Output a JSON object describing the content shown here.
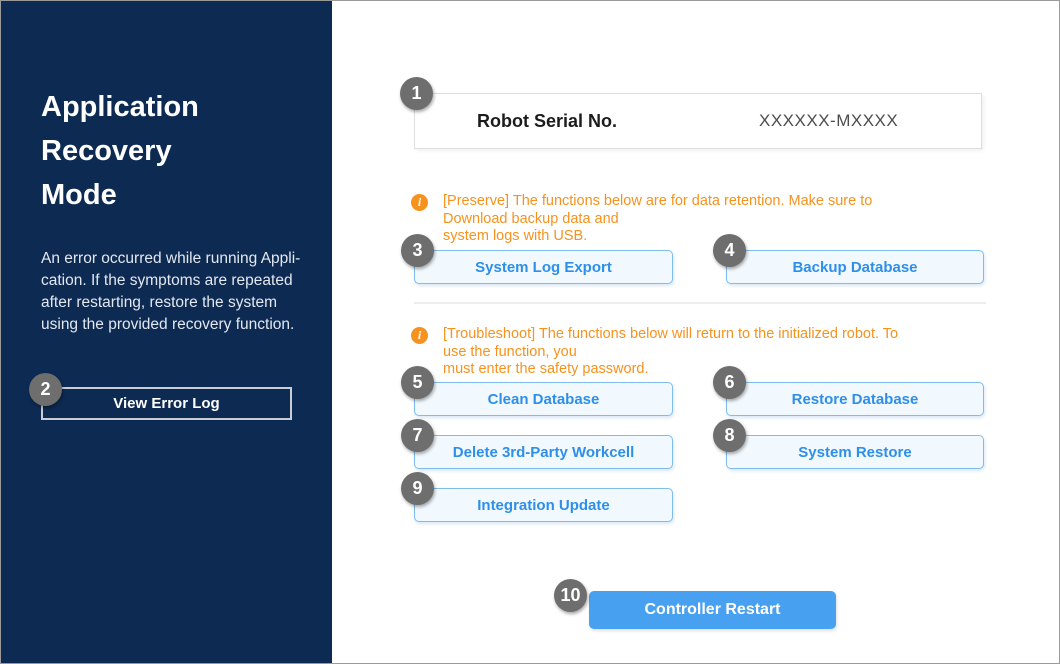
{
  "sidebar": {
    "title": "Application\nRecovery\nMode",
    "description": "An error occurred while running Appli-\ncation. If the symptoms are repeated\nafter restarting, restore the system\nusing the provided recovery function.",
    "view_error_log": {
      "badge": "2",
      "label": "View Error Log"
    }
  },
  "main": {
    "serial": {
      "badge": "1",
      "label": "Robot Serial No.",
      "value": "XXXXXX-MXXXX"
    },
    "notes": {
      "preserve": {
        "icon": "info-icon",
        "glyph": "i",
        "text": "[Preserve] The functions below are for data retention. Make sure to Download backup data and\nsystem logs with USB."
      },
      "troubleshoot": {
        "icon": "info-icon",
        "glyph": "i",
        "text": "[Troubleshoot] The functions below will return to the initialized robot. To use the function, you\nmust enter the safety password."
      }
    },
    "buttons": {
      "system_log_export": {
        "badge": "3",
        "label": "System Log Export"
      },
      "backup_database": {
        "badge": "4",
        "label": "Backup Database"
      },
      "clean_database": {
        "badge": "5",
        "label": "Clean Database"
      },
      "restore_database": {
        "badge": "6",
        "label": "Restore Database"
      },
      "delete_3rd_party_workcell": {
        "badge": "7",
        "label": "Delete 3rd-Party Workcell"
      },
      "system_restore": {
        "badge": "8",
        "label": "System Restore"
      },
      "integration_update": {
        "badge": "9",
        "label": "Integration Update"
      }
    },
    "restart": {
      "badge": "10",
      "label": "Controller Restart"
    }
  },
  "colors": {
    "sidebar_navy": "#0D2A52",
    "accent_orange": "#F6921E",
    "button_blue_text": "#2E8FE9",
    "button_blue_border": "#7EBCF0",
    "button_blue_bg": "#F2F9FE",
    "restart_blue": "#47A0F0",
    "badge_gray": "#6E6E6E"
  }
}
